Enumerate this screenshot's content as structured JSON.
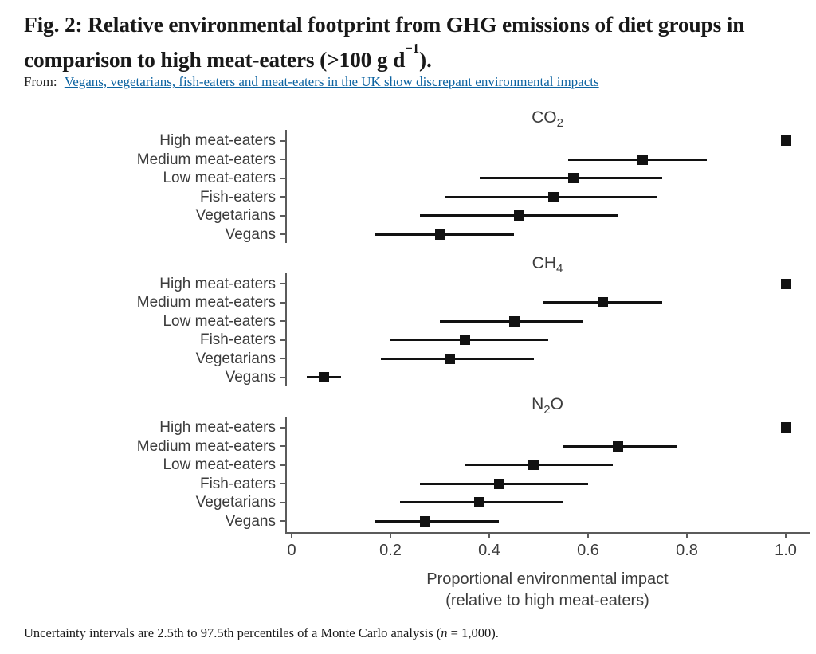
{
  "header": {
    "title_main": "Fig. 2: Relative environmental footprint from GHG emissions of diet groups in comparison to high meat-eaters (>100 g d",
    "title_sup": "−1",
    "title_close": ").",
    "from_label": "From:",
    "source_link_text": "Vegans, vegetarians, fish-eaters and meat-eaters in the UK show discrepant environmental impacts"
  },
  "footnote": {
    "pre": "Uncertainty intervals are 2.5th to 97.5th percentiles of a Monte Carlo analysis (",
    "var": "n",
    "post": " = 1,000)."
  },
  "colors": {
    "heading_text": "#191919",
    "link": "#0c63a1",
    "chart_text": "#3c3c3c",
    "axis_line": "#5b5b5b",
    "data": "#121212"
  },
  "chart_data": {
    "type": "scatter",
    "orientation": "horizontal",
    "grid": false,
    "legend": "none",
    "categories": [
      "High meat-eaters",
      "Medium meat-eaters",
      "Low meat-eaters",
      "Fish-eaters",
      "Vegetarians",
      "Vegans"
    ],
    "x_tick_labels": [
      "0",
      "0.2",
      "0.4",
      "0.6",
      "0.8",
      "1.0"
    ],
    "x_tick_values": [
      0,
      0.2,
      0.4,
      0.6,
      0.8,
      1.0
    ],
    "xlim": [
      0,
      1.05
    ],
    "xlabel_line1": "Proportional environmental impact",
    "xlabel_line2": "(relative to high meat-eaters)",
    "panels": [
      {
        "id": "co2",
        "title_parts": [
          {
            "text": "CO"
          },
          {
            "text": "2",
            "sub": true
          }
        ],
        "points": [
          {
            "category": "High meat-eaters",
            "value": 1.0,
            "lo": 1.0,
            "hi": 1.0
          },
          {
            "category": "Medium meat-eaters",
            "value": 0.71,
            "lo": 0.56,
            "hi": 0.84
          },
          {
            "category": "Low meat-eaters",
            "value": 0.57,
            "lo": 0.38,
            "hi": 0.75
          },
          {
            "category": "Fish-eaters",
            "value": 0.53,
            "lo": 0.31,
            "hi": 0.74
          },
          {
            "category": "Vegetarians",
            "value": 0.46,
            "lo": 0.26,
            "hi": 0.66
          },
          {
            "category": "Vegans",
            "value": 0.3,
            "lo": 0.17,
            "hi": 0.45
          }
        ]
      },
      {
        "id": "ch4",
        "title_parts": [
          {
            "text": "CH"
          },
          {
            "text": "4",
            "sub": true
          }
        ],
        "points": [
          {
            "category": "High meat-eaters",
            "value": 1.0,
            "lo": 1.0,
            "hi": 1.0
          },
          {
            "category": "Medium meat-eaters",
            "value": 0.63,
            "lo": 0.51,
            "hi": 0.75
          },
          {
            "category": "Low meat-eaters",
            "value": 0.45,
            "lo": 0.3,
            "hi": 0.59
          },
          {
            "category": "Fish-eaters",
            "value": 0.35,
            "lo": 0.2,
            "hi": 0.52
          },
          {
            "category": "Vegetarians",
            "value": 0.32,
            "lo": 0.18,
            "hi": 0.49
          },
          {
            "category": "Vegans",
            "value": 0.065,
            "lo": 0.03,
            "hi": 0.1
          }
        ]
      },
      {
        "id": "n2o",
        "title_parts": [
          {
            "text": "N"
          },
          {
            "text": "2",
            "sub": true
          },
          {
            "text": "O"
          }
        ],
        "points": [
          {
            "category": "High meat-eaters",
            "value": 1.0,
            "lo": 1.0,
            "hi": 1.0
          },
          {
            "category": "Medium meat-eaters",
            "value": 0.66,
            "lo": 0.55,
            "hi": 0.78
          },
          {
            "category": "Low meat-eaters",
            "value": 0.49,
            "lo": 0.35,
            "hi": 0.65
          },
          {
            "category": "Fish-eaters",
            "value": 0.42,
            "lo": 0.26,
            "hi": 0.6
          },
          {
            "category": "Vegetarians",
            "value": 0.38,
            "lo": 0.22,
            "hi": 0.55
          },
          {
            "category": "Vegans",
            "value": 0.27,
            "lo": 0.17,
            "hi": 0.42
          }
        ]
      }
    ]
  }
}
